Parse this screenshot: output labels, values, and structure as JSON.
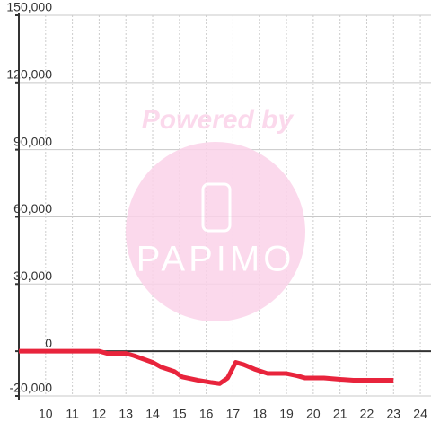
{
  "chart_data": {
    "type": "line",
    "x": [
      9,
      12,
      12.3,
      13,
      13.3,
      14,
      14.3,
      14.8,
      15.1,
      15.7,
      16.2,
      16.5,
      16.8,
      17.1,
      17.4,
      17.8,
      18.3,
      19,
      19.4,
      19.7,
      20.4,
      20.9,
      21.5,
      23
    ],
    "series": [
      {
        "color": "#e8243c",
        "values": [
          0,
          0,
          -1000,
          -1000,
          -2000,
          -5000,
          -7000,
          -9000,
          -11500,
          -13000,
          -14000,
          -14500,
          -12000,
          -5000,
          -6000,
          -8000,
          -10000,
          -10000,
          -11000,
          -12000,
          -12000,
          -12500,
          -13000,
          -13000
        ]
      }
    ],
    "xlim": [
      9,
      24.4
    ],
    "ylim": [
      -20000,
      150000
    ],
    "xticks": [
      10,
      11,
      12,
      13,
      14,
      15,
      16,
      17,
      18,
      19,
      20,
      21,
      22,
      23,
      24
    ],
    "yticks": [
      {
        "value": -20000,
        "label": "-20,000"
      },
      0,
      {
        "value": 30000,
        "label": "30,000"
      },
      {
        "value": 60000,
        "label": "60,000"
      },
      {
        "value": 90000,
        "label": "90,000"
      },
      {
        "value": 120000,
        "label": "120,000"
      },
      {
        "value": 150000,
        "label": "150,000"
      }
    ],
    "grid": true
  },
  "watermark": {
    "line1": "Powered by",
    "line2": "PAPIMO"
  }
}
